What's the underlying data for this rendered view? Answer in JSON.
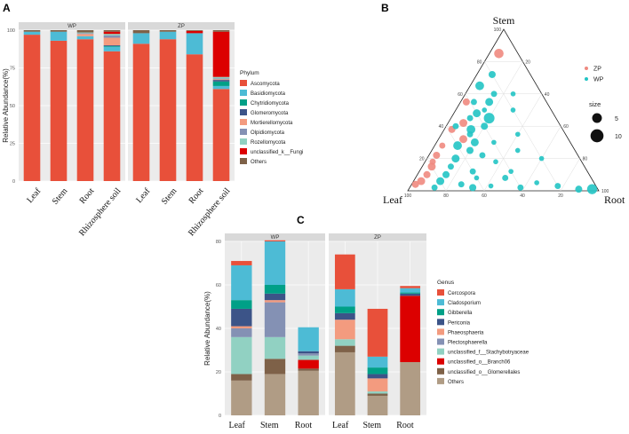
{
  "panel_labels": {
    "a": "A",
    "b": "B",
    "c": "C"
  },
  "colors": {
    "phylum": {
      "Ascomycota": "#e8503a",
      "Basidiomycota": "#4dbbd5",
      "Chytridiomycota": "#00a087",
      "Glomeromycota": "#3c5488",
      "Mortierellomycota": "#f39b7f",
      "Olpidiomycota": "#8491b4",
      "Rozellomycota": "#91d1c2",
      "unclassified_k__Fungi": "#dc0000",
      "Others": "#7e6148"
    },
    "genus": {
      "Cercospora": "#e8503a",
      "Cladosporium": "#4dbbd5",
      "Gibberella": "#00a087",
      "Periconia": "#3c5488",
      "Phaeosphaeria": "#f39b7f",
      "Plectosphaerella": "#8491b4",
      "unclassified_f__Stachybotryaceae": "#91d1c2",
      "unclassified_o__Branch06": "#dc0000",
      "unclassified_o__Glomerellales": "#7e6148",
      "Others": "#b09c85"
    },
    "ternary": {
      "ZP": "#ef8a80",
      "WP": "#22c4c4"
    }
  },
  "chart_data": [
    {
      "id": "A",
      "type": "bar",
      "stacked": true,
      "facets": [
        "WP",
        "ZP"
      ],
      "categories": [
        "Leaf",
        "Stem",
        "Root",
        "Rhizosphere soil"
      ],
      "ylabel": "Relative Abundance(%)",
      "ylim": [
        0,
        100
      ],
      "yticks": [
        0,
        25,
        50,
        75,
        100
      ],
      "legend_title": "Phylum",
      "legend": [
        "Ascomycota",
        "Basidiomycota",
        "Chytridiomycota",
        "Glomeromycota",
        "Mortierellomycota",
        "Olpidiomycota",
        "Rozellomycota",
        "unclassified_k__Fungi",
        "Others"
      ],
      "series": [
        {
          "name": "Ascomycota",
          "values": {
            "WP": [
              97,
              93,
              94,
              86
            ],
            "ZP": [
              91,
              94,
              84,
              61
            ]
          }
        },
        {
          "name": "Basidiomycota",
          "values": {
            "WP": [
              2,
              6,
              2,
              3
            ],
            "ZP": [
              7,
              5,
              14,
              2
            ]
          }
        },
        {
          "name": "Chytridiomycota",
          "values": {
            "WP": [
              0,
              0,
              0,
              0.5
            ],
            "ZP": [
              0,
              0,
              0,
              3
            ]
          }
        },
        {
          "name": "Glomeromycota",
          "values": {
            "WP": [
              0,
              0,
              0,
              0.5
            ],
            "ZP": [
              0,
              0,
              0,
              1
            ]
          }
        },
        {
          "name": "Mortierellomycota",
          "values": {
            "WP": [
              0,
              0,
              1.5,
              5
            ],
            "ZP": [
              0,
              0,
              0,
              0.5
            ]
          }
        },
        {
          "name": "Olpidiomycota",
          "values": {
            "WP": [
              0,
              0,
              0.5,
              1.5
            ],
            "ZP": [
              0,
              0,
              0,
              0.5
            ]
          }
        },
        {
          "name": "Rozellomycota",
          "values": {
            "WP": [
              0,
              0,
              0.5,
              1
            ],
            "ZP": [
              0,
              0,
              0,
              1
            ]
          }
        },
        {
          "name": "unclassified_k__Fungi",
          "values": {
            "WP": [
              0,
              0,
              0,
              1.5
            ],
            "ZP": [
              0,
              0,
              1.5,
              30
            ]
          }
        },
        {
          "name": "Others",
          "values": {
            "WP": [
              1,
              1,
              1.5,
              1
            ],
            "ZP": [
              2,
              1,
              0.5,
              1
            ]
          }
        }
      ]
    },
    {
      "id": "B",
      "type": "scatter",
      "subtype": "ternary",
      "vertices": [
        "Stem",
        "Leaf",
        "Root"
      ],
      "ticks": [
        20,
        40,
        60,
        80,
        100
      ],
      "legend_groups": [
        "ZP",
        "WP"
      ],
      "size_title": "size",
      "size_legend": [
        5,
        10
      ],
      "points": [
        {
          "g": "ZP",
          "stem": 85,
          "leaf": 10,
          "root": 5,
          "s": 7
        },
        {
          "g": "WP",
          "stem": 72,
          "leaf": 20,
          "root": 8,
          "s": 4
        },
        {
          "g": "WP",
          "stem": 65,
          "leaf": 30,
          "root": 5,
          "s": 6
        },
        {
          "g": "WP",
          "stem": 60,
          "leaf": 25,
          "root": 15,
          "s": 3
        },
        {
          "g": "ZP",
          "stem": 55,
          "leaf": 42,
          "root": 3,
          "s": 4
        },
        {
          "g": "WP",
          "stem": 55,
          "leaf": 30,
          "root": 15,
          "s": 5
        },
        {
          "g": "WP",
          "stem": 50,
          "leaf": 35,
          "root": 15,
          "s": 2
        },
        {
          "g": "WP",
          "stem": 48,
          "leaf": 40,
          "root": 12,
          "s": 5
        },
        {
          "g": "WP",
          "stem": 45,
          "leaf": 35,
          "root": 20,
          "s": 9
        },
        {
          "g": "WP",
          "stem": 45,
          "leaf": 45,
          "root": 10,
          "s": 3
        },
        {
          "g": "ZP",
          "stem": 42,
          "leaf": 50,
          "root": 8,
          "s": 5
        },
        {
          "g": "WP",
          "stem": 40,
          "leaf": 40,
          "root": 20,
          "s": 4
        },
        {
          "g": "ZP",
          "stem": 38,
          "leaf": 58,
          "root": 4,
          "s": 4
        },
        {
          "g": "WP",
          "stem": 38,
          "leaf": 48,
          "root": 14,
          "s": 6
        },
        {
          "g": "WP",
          "stem": 35,
          "leaf": 50,
          "root": 15,
          "s": 3
        },
        {
          "g": "ZP",
          "stem": 32,
          "leaf": 55,
          "root": 13,
          "s": 5
        },
        {
          "g": "WP",
          "stem": 30,
          "leaf": 50,
          "root": 20,
          "s": 5
        },
        {
          "g": "WP",
          "stem": 30,
          "leaf": 40,
          "root": 30,
          "s": 2
        },
        {
          "g": "ZP",
          "stem": 28,
          "leaf": 68,
          "root": 4,
          "s": 3
        },
        {
          "g": "WP",
          "stem": 28,
          "leaf": 60,
          "root": 12,
          "s": 6
        },
        {
          "g": "WP",
          "stem": 25,
          "leaf": 55,
          "root": 20,
          "s": 4
        },
        {
          "g": "ZP",
          "stem": 22,
          "leaf": 74,
          "root": 4,
          "s": 4
        },
        {
          "g": "WP",
          "stem": 22,
          "leaf": 50,
          "root": 28,
          "s": 3
        },
        {
          "g": "WP",
          "stem": 20,
          "leaf": 65,
          "root": 15,
          "s": 5
        },
        {
          "g": "ZP",
          "stem": 18,
          "leaf": 78,
          "root": 4,
          "s": 3
        },
        {
          "g": "WP",
          "stem": 18,
          "leaf": 45,
          "root": 37,
          "s": 2
        },
        {
          "g": "ZP",
          "stem": 15,
          "leaf": 80,
          "root": 5,
          "s": 5
        },
        {
          "g": "WP",
          "stem": 15,
          "leaf": 70,
          "root": 15,
          "s": 3
        },
        {
          "g": "WP",
          "stem": 12,
          "leaf": 60,
          "root": 28,
          "s": 3
        },
        {
          "g": "WP",
          "stem": 12,
          "leaf": 40,
          "root": 48,
          "s": 2
        },
        {
          "g": "ZP",
          "stem": 10,
          "leaf": 85,
          "root": 5,
          "s": 4
        },
        {
          "g": "WP",
          "stem": 10,
          "leaf": 75,
          "root": 15,
          "s": 4
        },
        {
          "g": "WP",
          "stem": 8,
          "leaf": 60,
          "root": 32,
          "s": 2
        },
        {
          "g": "WP",
          "stem": 8,
          "leaf": 45,
          "root": 47,
          "s": 3
        },
        {
          "g": "ZP",
          "stem": 6,
          "leaf": 90,
          "root": 4,
          "s": 5
        },
        {
          "g": "WP",
          "stem": 6,
          "leaf": 80,
          "root": 14,
          "s": 5
        },
        {
          "g": "WP",
          "stem": 5,
          "leaf": 30,
          "root": 65,
          "s": 2
        },
        {
          "g": "ZP",
          "stem": 4,
          "leaf": 94,
          "root": 2,
          "s": 4
        },
        {
          "g": "WP",
          "stem": 4,
          "leaf": 70,
          "root": 26,
          "s": 3
        },
        {
          "g": "WP",
          "stem": 3,
          "leaf": 55,
          "root": 42,
          "s": 2
        },
        {
          "g": "WP",
          "stem": 3,
          "leaf": 20,
          "root": 77,
          "s": 3
        },
        {
          "g": "WP",
          "stem": 2,
          "leaf": 85,
          "root": 13,
          "s": 3
        },
        {
          "g": "WP",
          "stem": 2,
          "leaf": 65,
          "root": 33,
          "s": 4
        },
        {
          "g": "WP",
          "stem": 2,
          "leaf": 40,
          "root": 58,
          "s": 3
        },
        {
          "g": "WP",
          "stem": 1,
          "leaf": 10,
          "root": 89,
          "s": 4
        },
        {
          "g": "WP",
          "stem": 1,
          "leaf": 3,
          "root": 96,
          "s": 8
        },
        {
          "g": "WP",
          "stem": 35,
          "leaf": 25,
          "root": 40,
          "s": 2
        },
        {
          "g": "WP",
          "stem": 25,
          "leaf": 30,
          "root": 45,
          "s": 2
        },
        {
          "g": "WP",
          "stem": 20,
          "leaf": 20,
          "root": 60,
          "s": 2
        },
        {
          "g": "WP",
          "stem": 50,
          "leaf": 20,
          "root": 30,
          "s": 2
        },
        {
          "g": "WP",
          "stem": 60,
          "leaf": 15,
          "root": 25,
          "s": 2
        },
        {
          "g": "WP",
          "stem": 40,
          "leaf": 55,
          "root": 5,
          "s": 3
        },
        {
          "g": "WP",
          "stem": 55,
          "leaf": 38,
          "root": 7,
          "s": 3
        }
      ]
    },
    {
      "id": "C",
      "type": "bar",
      "stacked": true,
      "facets": [
        "WP",
        "ZP"
      ],
      "categories": [
        "Leaf",
        "Stem",
        "Root"
      ],
      "ylabel": "Relative Abundance(%)",
      "ylim": [
        0,
        80
      ],
      "yticks": [
        0,
        20,
        40,
        60,
        80
      ],
      "legend_title": "Genus",
      "legend": [
        "Cercospora",
        "Cladosporium",
        "Gibberella",
        "Periconia",
        "Phaeosphaeria",
        "Plectosphaerella",
        "unclassified_f__Stachybotryaceae",
        "unclassified_o__Branch06",
        "unclassified_o__Glomerellales",
        "Others"
      ],
      "series": [
        {
          "name": "Others",
          "values": {
            "WP": [
              16,
              19,
              20.5
            ],
            "ZP": [
              29,
              9,
              24.5
            ]
          }
        },
        {
          "name": "unclassified_o__Glomerellales",
          "values": {
            "WP": [
              3,
              7,
              1
            ],
            "ZP": [
              3,
              1,
              0
            ]
          }
        },
        {
          "name": "unclassified_o__Branch06",
          "values": {
            "WP": [
              0,
              0,
              4
            ],
            "ZP": [
              0,
              0,
              30.5
            ]
          }
        },
        {
          "name": "unclassified_f__Stachybotryaceae",
          "values": {
            "WP": [
              17,
              10,
              2
            ],
            "ZP": [
              3,
              1,
              0
            ]
          }
        },
        {
          "name": "Plectosphaerella",
          "values": {
            "WP": [
              4,
              16,
              1
            ],
            "ZP": [
              0,
              0,
              0
            ]
          }
        },
        {
          "name": "Phaeosphaeria",
          "values": {
            "WP": [
              1,
              1,
              0
            ],
            "ZP": [
              9,
              6,
              0
            ]
          }
        },
        {
          "name": "Periconia",
          "values": {
            "WP": [
              8,
              3,
              1
            ],
            "ZP": [
              3,
              2,
              1
            ]
          }
        },
        {
          "name": "Gibberella",
          "values": {
            "WP": [
              4,
              4,
              0
            ],
            "ZP": [
              3,
              3,
              0.5
            ]
          }
        },
        {
          "name": "Cladosporium",
          "values": {
            "WP": [
              16,
              20,
              11
            ],
            "ZP": [
              8,
              5,
              2
            ]
          }
        },
        {
          "name": "Cercospora",
          "values": {
            "WP": [
              2,
              0.5,
              0
            ],
            "ZP": [
              16,
              22,
              1
            ]
          }
        }
      ]
    }
  ]
}
